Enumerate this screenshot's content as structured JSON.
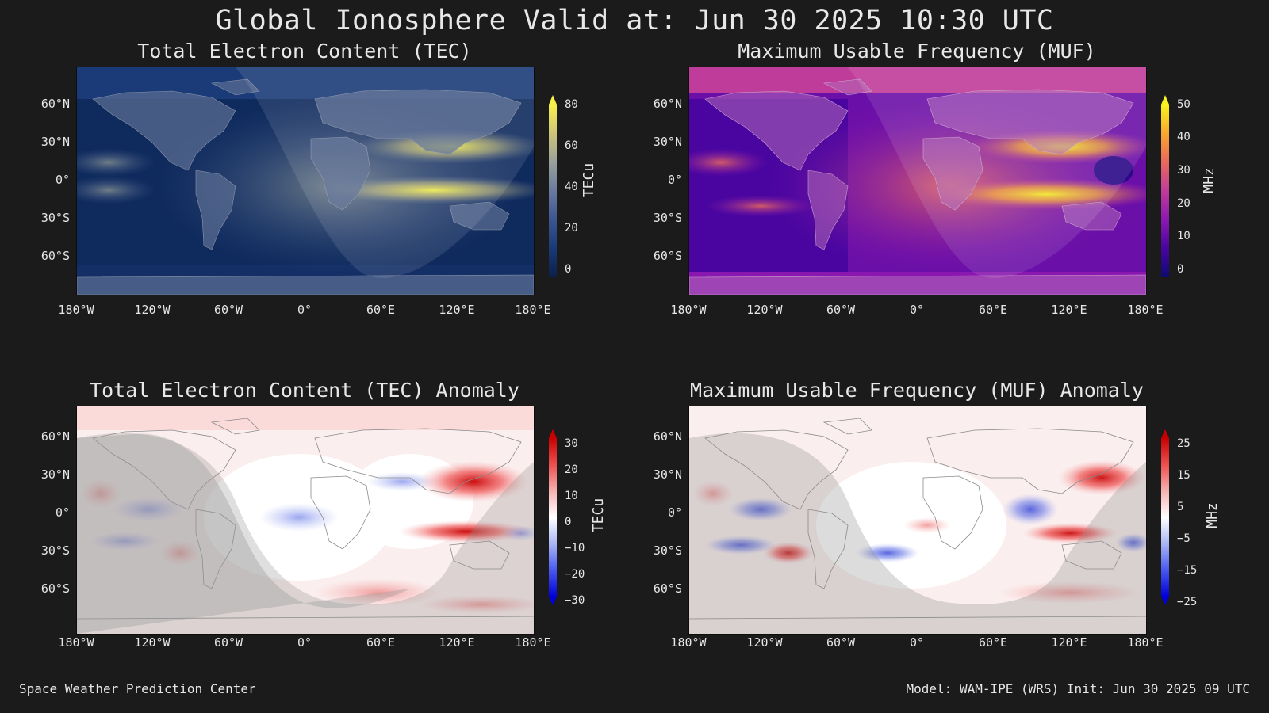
{
  "header": {
    "title": "Global Ionosphere Valid at: Jun 30 2025 10:30 UTC"
  },
  "axes": {
    "lat_labels": [
      "60°N",
      "30°N",
      "0°",
      "30°S",
      "60°S"
    ],
    "lon_labels": [
      "180°W",
      "120°W",
      "60°W",
      "0°",
      "60°E",
      "120°E",
      "180°E"
    ]
  },
  "panels": [
    {
      "title": "Total Electron Content (TEC)",
      "unit": "TECu",
      "colorbar_ticks": [
        "80",
        "60",
        "40",
        "20",
        "0"
      ],
      "colormap": [
        "#0b1f48",
        "#1a3a78",
        "#3a5590",
        "#6a7aa0",
        "#9aa29a",
        "#cdc37a",
        "#f7f24a"
      ],
      "colorbar_extend": "max"
    },
    {
      "title": "Maximum Usable Frequency (MUF)",
      "unit": "MHz",
      "colorbar_ticks": [
        "50",
        "40",
        "30",
        "20",
        "10",
        "0"
      ],
      "colormap": [
        "#0d0a70",
        "#4a05a0",
        "#8a18b0",
        "#c03c9a",
        "#e86a5c",
        "#f7a530",
        "#f7f21e"
      ],
      "colorbar_extend": "max"
    },
    {
      "title": "Total Electron Content (TEC) Anomaly",
      "unit": "TECu",
      "colorbar_ticks": [
        "30",
        "20",
        "10",
        "0",
        "−10",
        "−20",
        "−30"
      ],
      "colormap": [
        "#0000d8",
        "#4a5af0",
        "#a8b4f4",
        "#ffffff",
        "#f6b0b0",
        "#ee5050",
        "#c80000"
      ],
      "colorbar_extend": "both"
    },
    {
      "title": "Maximum Usable Frequency (MUF) Anomaly",
      "unit": "MHz",
      "colorbar_ticks": [
        "25",
        "15",
        "5",
        "−5",
        "−15",
        "−25"
      ],
      "colormap": [
        "#0000d8",
        "#4a5af0",
        "#a8b4f4",
        "#ffffff",
        "#f6b0b0",
        "#ee5050",
        "#c80000"
      ],
      "colorbar_extend": "both"
    }
  ],
  "footer": {
    "left": "Space Weather Prediction Center",
    "right": "Model: WAM-IPE (WRS) Init: Jun 30 2025 09 UTC"
  }
}
